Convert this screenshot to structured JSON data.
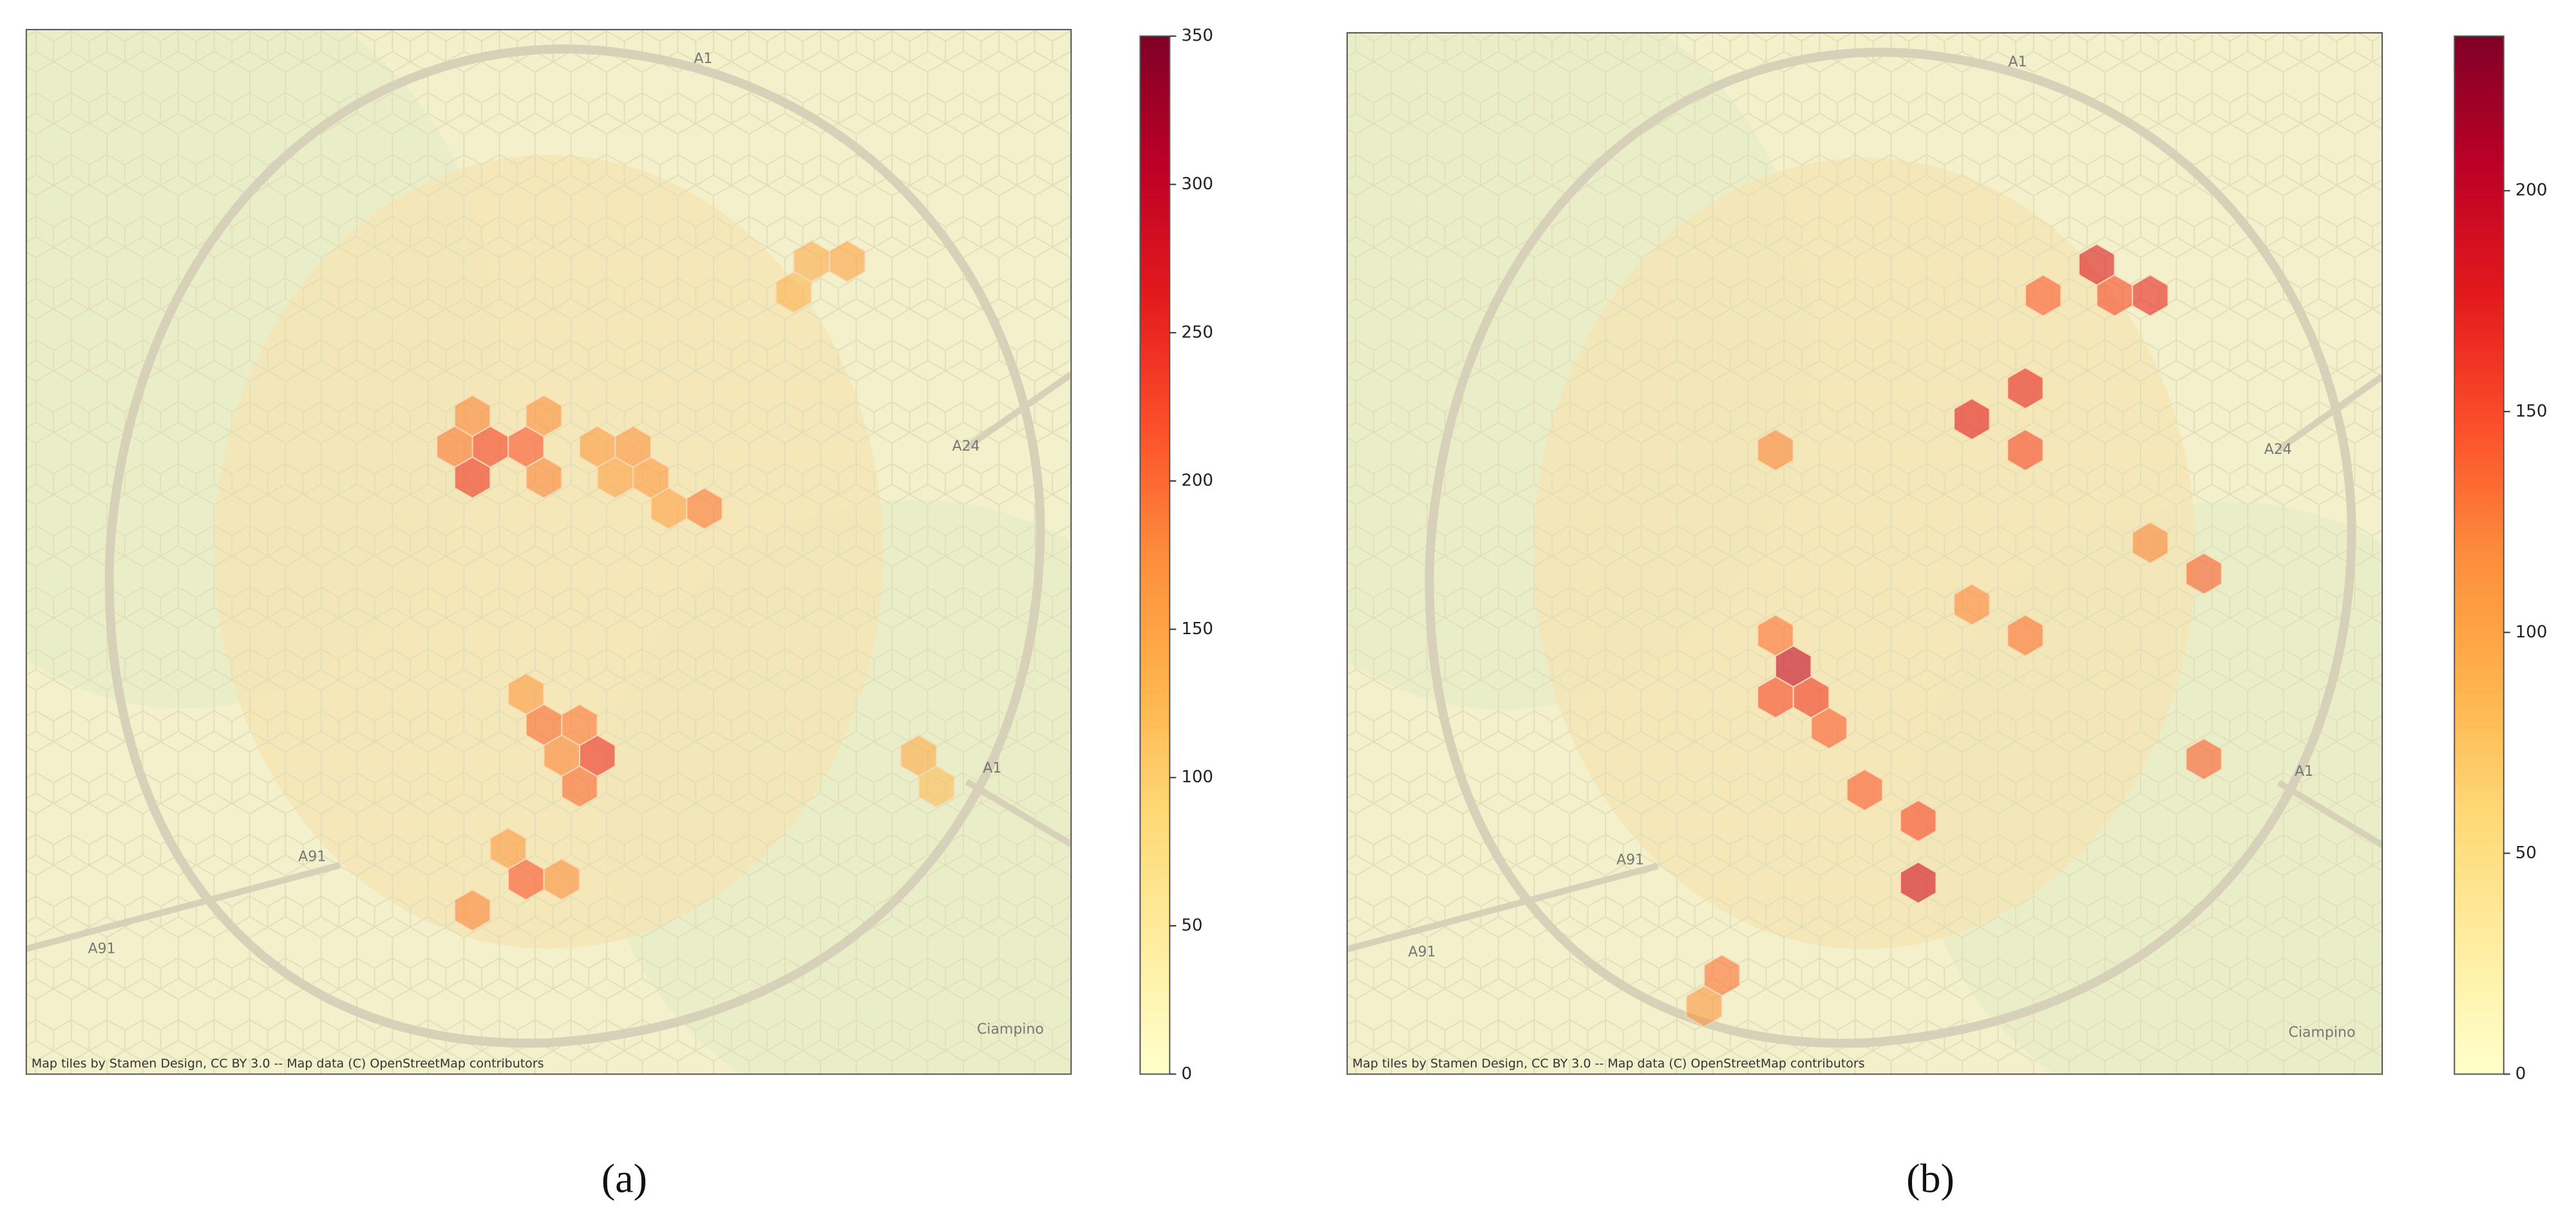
{
  "panels": [
    {
      "caption": "(a)",
      "attribution": "Map tiles by Stamen Design, CC BY 3.0 -- Map data (C) OpenStreetMap contributors",
      "places": [
        "A1",
        "A24",
        "A1",
        "A91",
        "A91",
        "Ciampino"
      ],
      "colorbar": {
        "lim": [
          0,
          350
        ],
        "ticks": [
          0,
          50,
          100,
          150,
          200,
          250,
          300,
          350
        ]
      },
      "hexes": [
        {
          "col": 12,
          "row": 13,
          "value": 230
        },
        {
          "col": 13,
          "row": 13,
          "value": 215
        },
        {
          "col": 12,
          "row": 14,
          "value": 240
        },
        {
          "col": 11,
          "row": 13,
          "value": 190
        },
        {
          "col": 12,
          "row": 12,
          "value": 180
        },
        {
          "col": 14,
          "row": 12,
          "value": 170
        },
        {
          "col": 14,
          "row": 14,
          "value": 180
        },
        {
          "col": 15,
          "row": 13,
          "value": 160
        },
        {
          "col": 16,
          "row": 13,
          "value": 165
        },
        {
          "col": 17,
          "row": 14,
          "value": 160
        },
        {
          "col": 18,
          "row": 15,
          "value": 190
        },
        {
          "col": 17,
          "row": 15,
          "value": 150
        },
        {
          "col": 16,
          "row": 14,
          "value": 150
        },
        {
          "col": 15,
          "row": 23,
          "value": 245
        },
        {
          "col": 14,
          "row": 22,
          "value": 200
        },
        {
          "col": 15,
          "row": 22,
          "value": 190
        },
        {
          "col": 14,
          "row": 23,
          "value": 180
        },
        {
          "col": 15,
          "row": 24,
          "value": 200
        },
        {
          "col": 13,
          "row": 21,
          "value": 160
        },
        {
          "col": 13,
          "row": 27,
          "value": 215
        },
        {
          "col": 12,
          "row": 28,
          "value": 180
        },
        {
          "col": 14,
          "row": 27,
          "value": 170
        },
        {
          "col": 13,
          "row": 26,
          "value": 160
        },
        {
          "col": 21,
          "row": 7,
          "value": 140
        },
        {
          "col": 22,
          "row": 7,
          "value": 150
        },
        {
          "col": 21,
          "row": 8,
          "value": 130
        },
        {
          "col": 24,
          "row": 23,
          "value": 140
        },
        {
          "col": 25,
          "row": 24,
          "value": 120
        }
      ]
    },
    {
      "caption": "(b)",
      "attribution": "Map tiles by Stamen Design, CC BY 3.0 -- Map data (C) OpenStreetMap contributors",
      "places": [
        "A1",
        "A24",
        "A1",
        "A91",
        "A91",
        "Ciampino"
      ],
      "colorbar": {
        "lim": [
          0,
          235
        ],
        "ticks": [
          0,
          50,
          100,
          150,
          200
        ]
      },
      "hexes": [
        {
          "col": 12,
          "row": 20,
          "value": 200
        },
        {
          "col": 11,
          "row": 21,
          "value": 150
        },
        {
          "col": 12,
          "row": 21,
          "value": 160
        },
        {
          "col": 13,
          "row": 22,
          "value": 140
        },
        {
          "col": 11,
          "row": 19,
          "value": 130
        },
        {
          "col": 15,
          "row": 27,
          "value": 190
        },
        {
          "col": 15,
          "row": 25,
          "value": 150
        },
        {
          "col": 14,
          "row": 24,
          "value": 140
        },
        {
          "col": 20,
          "row": 7,
          "value": 180
        },
        {
          "col": 22,
          "row": 8,
          "value": 170
        },
        {
          "col": 21,
          "row": 8,
          "value": 150
        },
        {
          "col": 19,
          "row": 8,
          "value": 140
        },
        {
          "col": 18,
          "row": 11,
          "value": 170
        },
        {
          "col": 17,
          "row": 12,
          "value": 175
        },
        {
          "col": 18,
          "row": 13,
          "value": 150
        },
        {
          "col": 23,
          "row": 17,
          "value": 140
        },
        {
          "col": 22,
          "row": 16,
          "value": 120
        },
        {
          "col": 23,
          "row": 23,
          "value": 140
        },
        {
          "col": 18,
          "row": 19,
          "value": 130
        },
        {
          "col": 17,
          "row": 18,
          "value": 120
        },
        {
          "col": 11,
          "row": 13,
          "value": 120
        },
        {
          "col": 10,
          "row": 30,
          "value": 130
        },
        {
          "col": 9,
          "row": 31,
          "value": 110
        }
      ]
    }
  ]
}
